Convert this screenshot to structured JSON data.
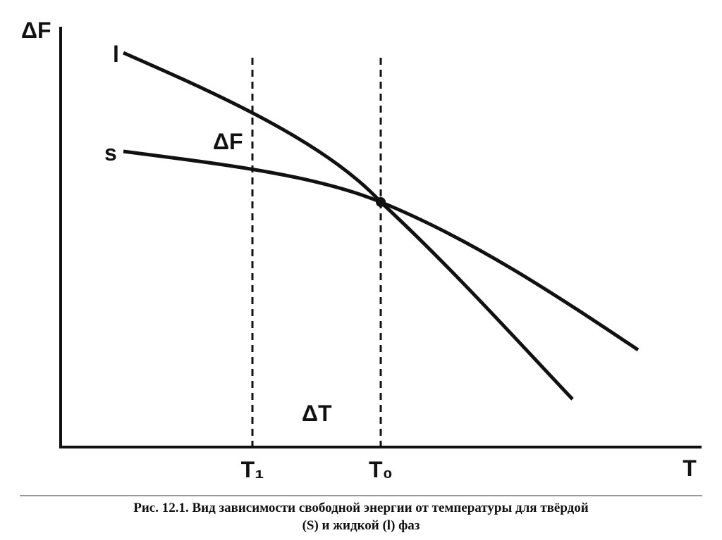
{
  "axes": {
    "y_label": "ΔF",
    "x_label": "T"
  },
  "curves": {
    "liquid": "l",
    "solid": "s"
  },
  "annotations": {
    "delta_f": "ΔF",
    "delta_t": "ΔT"
  },
  "markers": {
    "t1": "T₁",
    "t0": "T₀"
  },
  "caption": {
    "line1": "Рис. 12.1. Вид зависимости свободной энергии от температуры для твёрдой",
    "line2": "(S) и жидкой (l) фаз"
  }
}
